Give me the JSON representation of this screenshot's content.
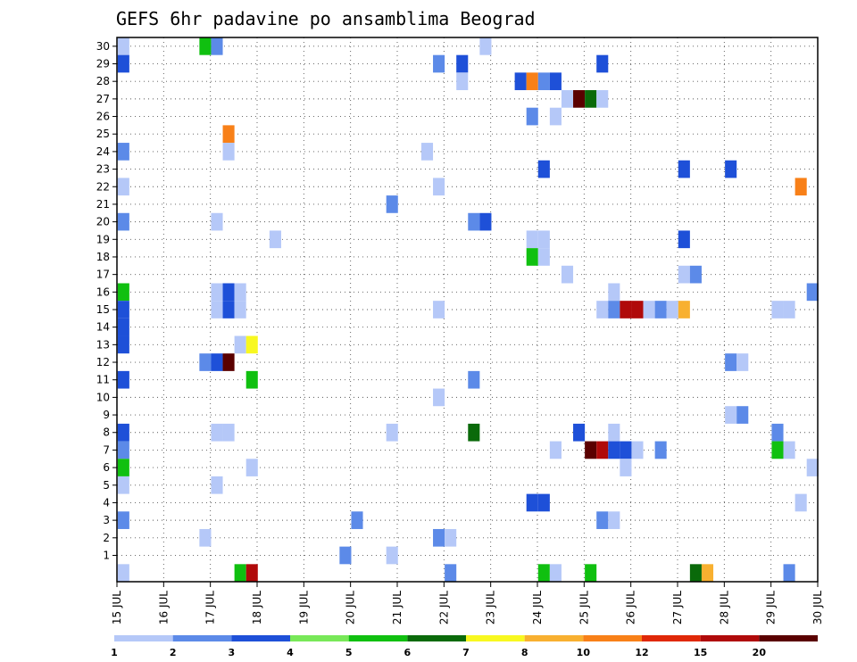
{
  "chart_data": {
    "type": "heatmap",
    "title": "GEFS 6hr padavine po ansamblima Beograd",
    "xlabel": "",
    "ylabel": "",
    "x_ticks": [
      "15 JUL",
      "16 JUL",
      "17 JUL",
      "18 JUL",
      "19 JUL",
      "20 JUL",
      "21 JUL",
      "22 JUL",
      "23 JUL",
      "24 JUL",
      "25 JUL",
      "26 JUL",
      "27 JUL",
      "28 JUL",
      "29 JUL",
      "30 JUL"
    ],
    "y_ticks": [
      1,
      2,
      3,
      4,
      5,
      6,
      7,
      8,
      9,
      10,
      11,
      12,
      13,
      14,
      15,
      16,
      17,
      18,
      19,
      20,
      21,
      22,
      23,
      24,
      25,
      26,
      27,
      28,
      29,
      30
    ],
    "x_step": "6hr",
    "ylim": [
      0,
      30
    ],
    "grid": true,
    "colorbar": {
      "placement": "bottom",
      "labels": [
        "1",
        "2",
        "3",
        "4",
        "5",
        "6",
        "7",
        "8",
        "10",
        "12",
        "15",
        "20"
      ],
      "colors": [
        "#b5c8f8",
        "#5c8ae8",
        "#1e50d8",
        "#78e858",
        "#10c010",
        "#0a6a0a",
        "#f8f820",
        "#f8b030",
        "#f88018",
        "#e02808",
        "#b00a0a",
        "#5a0000"
      ]
    },
    "cells": [
      {
        "x": "15 JUL 00",
        "m": 30,
        "v": 1
      },
      {
        "x": "15 JUL 00",
        "m": 29,
        "v": 3
      },
      {
        "x": "15 JUL 00",
        "m": 24,
        "v": 2
      },
      {
        "x": "15 JUL 00",
        "m": 22,
        "v": 1
      },
      {
        "x": "15 JUL 00",
        "m": 20,
        "v": 2
      },
      {
        "x": "15 JUL 00",
        "m": 16,
        "v": 5
      },
      {
        "x": "15 JUL 00",
        "m": 15,
        "v": 3
      },
      {
        "x": "15 JUL 00",
        "m": 14,
        "v": 3
      },
      {
        "x": "15 JUL 00",
        "m": 13,
        "v": 3
      },
      {
        "x": "15 JUL 00",
        "m": 11,
        "v": 3
      },
      {
        "x": "15 JUL 00",
        "m": 8,
        "v": 3
      },
      {
        "x": "15 JUL 00",
        "m": 7,
        "v": 2
      },
      {
        "x": "15 JUL 00",
        "m": 6,
        "v": 5
      },
      {
        "x": "15 JUL 00",
        "m": 5,
        "v": 1
      },
      {
        "x": "15 JUL 00",
        "m": 3,
        "v": 2
      },
      {
        "x": "15 JUL 00",
        "m": 0,
        "v": 1
      },
      {
        "x": "16 JUL 18",
        "m": 30,
        "v": 5
      },
      {
        "x": "16 JUL 18",
        "m": 12,
        "v": 2
      },
      {
        "x": "16 JUL 18",
        "m": 2,
        "v": 1
      },
      {
        "x": "17 JUL 00",
        "m": 30,
        "v": 2
      },
      {
        "x": "17 JUL 00",
        "m": 20,
        "v": 1
      },
      {
        "x": "17 JUL 00",
        "m": 16,
        "v": 1
      },
      {
        "x": "17 JUL 00",
        "m": 15,
        "v": 1
      },
      {
        "x": "17 JUL 00",
        "m": 12,
        "v": 3
      },
      {
        "x": "17 JUL 00",
        "m": 8,
        "v": 1
      },
      {
        "x": "17 JUL 00",
        "m": 5,
        "v": 1
      },
      {
        "x": "17 JUL 06",
        "m": 25,
        "v": 10
      },
      {
        "x": "17 JUL 06",
        "m": 24,
        "v": 1
      },
      {
        "x": "17 JUL 06",
        "m": 16,
        "v": 3
      },
      {
        "x": "17 JUL 06",
        "m": 15,
        "v": 3
      },
      {
        "x": "17 JUL 06",
        "m": 12,
        "v": 20
      },
      {
        "x": "17 JUL 06",
        "m": 8,
        "v": 1
      },
      {
        "x": "17 JUL 12",
        "m": 16,
        "v": 1
      },
      {
        "x": "17 JUL 12",
        "m": 15,
        "v": 1
      },
      {
        "x": "17 JUL 12",
        "m": 13,
        "v": 1
      },
      {
        "x": "17 JUL 12",
        "m": 0,
        "v": 5
      },
      {
        "x": "17 JUL 18",
        "m": 13,
        "v": 7
      },
      {
        "x": "17 JUL 18",
        "m": 11,
        "v": 5
      },
      {
        "x": "17 JUL 18",
        "m": 6,
        "v": 1
      },
      {
        "x": "17 JUL 18",
        "m": 0,
        "v": 15
      },
      {
        "x": "18 JUL 06",
        "m": 19,
        "v": 1
      },
      {
        "x": "19 JUL 18",
        "m": 1,
        "v": 2
      },
      {
        "x": "20 JUL 00",
        "m": 3,
        "v": 2
      },
      {
        "x": "20 JUL 18",
        "m": 21,
        "v": 2
      },
      {
        "x": "20 JUL 18",
        "m": 8,
        "v": 1
      },
      {
        "x": "20 JUL 18",
        "m": 1,
        "v": 1
      },
      {
        "x": "21 JUL 12",
        "m": 24,
        "v": 1
      },
      {
        "x": "21 JUL 18",
        "m": 29,
        "v": 2
      },
      {
        "x": "21 JUL 18",
        "m": 22,
        "v": 1
      },
      {
        "x": "21 JUL 18",
        "m": 15,
        "v": 1
      },
      {
        "x": "21 JUL 18",
        "m": 10,
        "v": 1
      },
      {
        "x": "21 JUL 18",
        "m": 2,
        "v": 2
      },
      {
        "x": "22 JUL 00",
        "m": 2,
        "v": 1
      },
      {
        "x": "22 JUL 00",
        "m": 0,
        "v": 2
      },
      {
        "x": "22 JUL 06",
        "m": 29,
        "v": 3
      },
      {
        "x": "22 JUL 06",
        "m": 28,
        "v": 1
      },
      {
        "x": "22 JUL 12",
        "m": 20,
        "v": 2
      },
      {
        "x": "22 JUL 12",
        "m": 11,
        "v": 2
      },
      {
        "x": "22 JUL 12",
        "m": 8,
        "v": 6
      },
      {
        "x": "22 JUL 18",
        "m": 30,
        "v": 1
      },
      {
        "x": "22 JUL 18",
        "m": 20,
        "v": 3
      },
      {
        "x": "23 JUL 12",
        "m": 28,
        "v": 3
      },
      {
        "x": "23 JUL 18",
        "m": 28,
        "v": 10
      },
      {
        "x": "23 JUL 18",
        "m": 26,
        "v": 2
      },
      {
        "x": "23 JUL 18",
        "m": 19,
        "v": 1
      },
      {
        "x": "23 JUL 18",
        "m": 18,
        "v": 5
      },
      {
        "x": "23 JUL 18",
        "m": 4,
        "v": 3
      },
      {
        "x": "24 JUL 00",
        "m": 28,
        "v": 2
      },
      {
        "x": "24 JUL 00",
        "m": 23,
        "v": 3
      },
      {
        "x": "24 JUL 00",
        "m": 19,
        "v": 1
      },
      {
        "x": "24 JUL 00",
        "m": 18,
        "v": 1
      },
      {
        "x": "24 JUL 00",
        "m": 4,
        "v": 3
      },
      {
        "x": "24 JUL 00",
        "m": 0,
        "v": 5
      },
      {
        "x": "24 JUL 06",
        "m": 28,
        "v": 3
      },
      {
        "x": "24 JUL 06",
        "m": 26,
        "v": 1
      },
      {
        "x": "24 JUL 06",
        "m": 7,
        "v": 1
      },
      {
        "x": "24 JUL 06",
        "m": 0,
        "v": 1
      },
      {
        "x": "24 JUL 12",
        "m": 27,
        "v": 1
      },
      {
        "x": "24 JUL 12",
        "m": 17,
        "v": 1
      },
      {
        "x": "24 JUL 18",
        "m": 27,
        "v": 20
      },
      {
        "x": "24 JUL 18",
        "m": 8,
        "v": 3
      },
      {
        "x": "25 JUL 00",
        "m": 27,
        "v": 6
      },
      {
        "x": "25 JUL 00",
        "m": 7,
        "v": 20
      },
      {
        "x": "25 JUL 00",
        "m": 0,
        "v": 5
      },
      {
        "x": "25 JUL 06",
        "m": 29,
        "v": 3
      },
      {
        "x": "25 JUL 06",
        "m": 27,
        "v": 1
      },
      {
        "x": "25 JUL 06",
        "m": 15,
        "v": 1
      },
      {
        "x": "25 JUL 06",
        "m": 7,
        "v": 15
      },
      {
        "x": "25 JUL 06",
        "m": 3,
        "v": 2
      },
      {
        "x": "25 JUL 12",
        "m": 16,
        "v": 1
      },
      {
        "x": "25 JUL 12",
        "m": 15,
        "v": 2
      },
      {
        "x": "25 JUL 12",
        "m": 8,
        "v": 1
      },
      {
        "x": "25 JUL 12",
        "m": 7,
        "v": 3
      },
      {
        "x": "25 JUL 12",
        "m": 3,
        "v": 1
      },
      {
        "x": "25 JUL 18",
        "m": 15,
        "v": 15
      },
      {
        "x": "25 JUL 18",
        "m": 7,
        "v": 3
      },
      {
        "x": "25 JUL 18",
        "m": 6,
        "v": 1
      },
      {
        "x": "26 JUL 00",
        "m": 15,
        "v": 15
      },
      {
        "x": "26 JUL 00",
        "m": 7,
        "v": 1
      },
      {
        "x": "26 JUL 06",
        "m": 15,
        "v": 1
      },
      {
        "x": "26 JUL 12",
        "m": 15,
        "v": 2
      },
      {
        "x": "26 JUL 12",
        "m": 7,
        "v": 2
      },
      {
        "x": "26 JUL 18",
        "m": 15,
        "v": 1
      },
      {
        "x": "27 JUL 00",
        "m": 23,
        "v": 3
      },
      {
        "x": "27 JUL 00",
        "m": 19,
        "v": 3
      },
      {
        "x": "27 JUL 00",
        "m": 17,
        "v": 1
      },
      {
        "x": "27 JUL 00",
        "m": 15,
        "v": 8
      },
      {
        "x": "27 JUL 06",
        "m": 17,
        "v": 2
      },
      {
        "x": "27 JUL 06",
        "m": 0,
        "v": 6
      },
      {
        "x": "27 JUL 12",
        "m": 0,
        "v": 8
      },
      {
        "x": "28 JUL 00",
        "m": 23,
        "v": 3
      },
      {
        "x": "28 JUL 00",
        "m": 12,
        "v": 2
      },
      {
        "x": "28 JUL 00",
        "m": 9,
        "v": 1
      },
      {
        "x": "28 JUL 06",
        "m": 12,
        "v": 1
      },
      {
        "x": "28 JUL 06",
        "m": 9,
        "v": 2
      },
      {
        "x": "29 JUL 00",
        "m": 15,
        "v": 1
      },
      {
        "x": "29 JUL 00",
        "m": 8,
        "v": 2
      },
      {
        "x": "29 JUL 00",
        "m": 7,
        "v": 5
      },
      {
        "x": "29 JUL 06",
        "m": 15,
        "v": 1
      },
      {
        "x": "29 JUL 06",
        "m": 7,
        "v": 1
      },
      {
        "x": "29 JUL 06",
        "m": 0,
        "v": 2
      },
      {
        "x": "29 JUL 12",
        "m": 22,
        "v": 10
      },
      {
        "x": "29 JUL 12",
        "m": 4,
        "v": 1
      },
      {
        "x": "29 JUL 18",
        "m": 16,
        "v": 2
      },
      {
        "x": "29 JUL 18",
        "m": 6,
        "v": 1
      }
    ]
  }
}
